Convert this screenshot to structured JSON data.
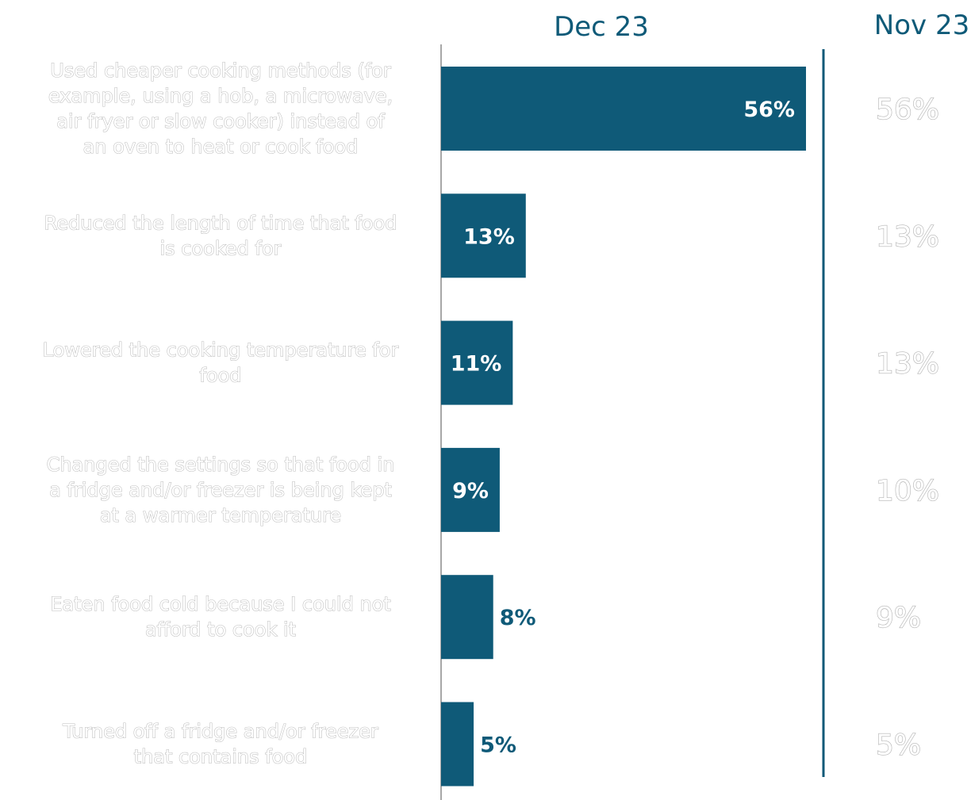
{
  "chart_data": {
    "type": "bar",
    "orientation": "horizontal",
    "value_format": "percent",
    "xlim": [
      0,
      56
    ],
    "columns": {
      "current": "Dec 23",
      "previous": "Nov 23"
    },
    "categories": [
      "Used cheaper cooking methods (for example, using a hob, a microwave, air fryer or slow cooker) instead of an oven to heat or cook food",
      "Reduced the length of time that food is cooked for",
      "Lowered the cooking temperature for food",
      "Changed the settings so that food in a fridge and/or freezer is being kept at a warmer temperature",
      "Eaten food cold because I could not afford to cook it",
      "Turned off a fridge and/or freezer that contains food"
    ],
    "series": [
      {
        "name": "Dec 23",
        "values": [
          56,
          13,
          11,
          9,
          8,
          5
        ],
        "color": "#0f5a78"
      },
      {
        "name": "Nov 23",
        "values": [
          56,
          13,
          13,
          10,
          9,
          5
        ]
      }
    ]
  }
}
